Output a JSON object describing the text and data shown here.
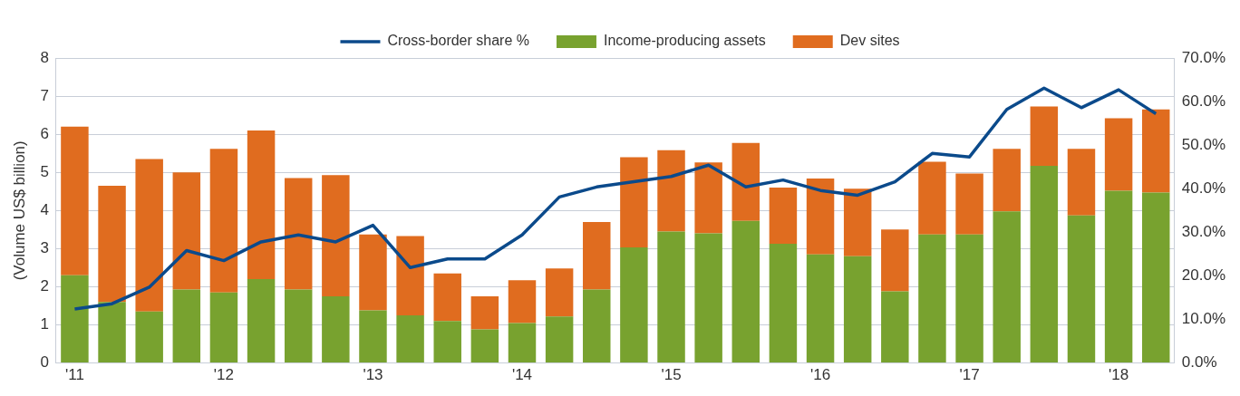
{
  "chart_data": {
    "type": "bar",
    "stacked": true,
    "ylabel": "(Volume US$ billion)",
    "categories": [
      "'11",
      null,
      null,
      null,
      "'12",
      null,
      null,
      null,
      "'13",
      null,
      null,
      null,
      "'14",
      null,
      null,
      null,
      "'15",
      null,
      null,
      null,
      "'16",
      null,
      null,
      null,
      "'17",
      null,
      null,
      null,
      "'18",
      null
    ],
    "series": [
      {
        "name": "Income-producing assets",
        "color": "#78a22f",
        "values": [
          2.3,
          1.6,
          1.35,
          1.93,
          1.85,
          2.2,
          1.93,
          1.75,
          1.38,
          1.25,
          1.1,
          0.88,
          1.05,
          1.22,
          1.93,
          3.03,
          3.45,
          3.4,
          3.73,
          3.13,
          2.85,
          2.8,
          1.88,
          3.37,
          3.37,
          3.98,
          5.17,
          3.87,
          4.52,
          4.47
        ]
      },
      {
        "name": "Dev sites",
        "color": "#e06c1f",
        "values": [
          3.9,
          3.05,
          4.0,
          3.07,
          3.77,
          3.9,
          2.92,
          3.18,
          1.99,
          2.08,
          1.25,
          0.87,
          1.12,
          1.26,
          1.77,
          2.37,
          2.13,
          1.86,
          2.04,
          1.47,
          1.99,
          1.77,
          1.62,
          1.91,
          1.6,
          1.64,
          1.56,
          1.75,
          1.9,
          2.18
        ]
      },
      {
        "name": "Cross-border share %",
        "type": "line",
        "axis": "y2",
        "color": "#0b4a8b",
        "values": [
          12.4,
          13.6,
          17.4,
          25.8,
          23.5,
          27.8,
          29.4,
          27.8,
          31.6,
          21.9,
          23.9,
          23.9,
          29.4,
          38.1,
          40.4,
          41.6,
          42.8,
          45.4,
          40.4,
          42.0,
          39.6,
          38.5,
          41.6,
          48.1,
          47.3,
          58.2,
          63.1,
          58.6,
          62.7,
          57.2
        ]
      }
    ],
    "ylim": [
      0,
      8
    ],
    "yticks": [
      0,
      1,
      2,
      3,
      4,
      5,
      6,
      7,
      8
    ],
    "y2lim": [
      0,
      70
    ],
    "y2ticks": [
      {
        "value": 0,
        "label": "0.0%"
      },
      {
        "value": 10,
        "label": "10.0%"
      },
      {
        "value": 20,
        "label": "20.0%"
      },
      {
        "value": 30,
        "label": "30.0%"
      },
      {
        "value": 40,
        "label": "40.0%"
      },
      {
        "value": 50,
        "label": "50.0%"
      },
      {
        "value": 60,
        "label": "60.0%"
      },
      {
        "value": 70,
        "label": "70.0%"
      }
    ],
    "grid": "y",
    "legend": "top",
    "marker": "none",
    "line_style": "solid"
  }
}
